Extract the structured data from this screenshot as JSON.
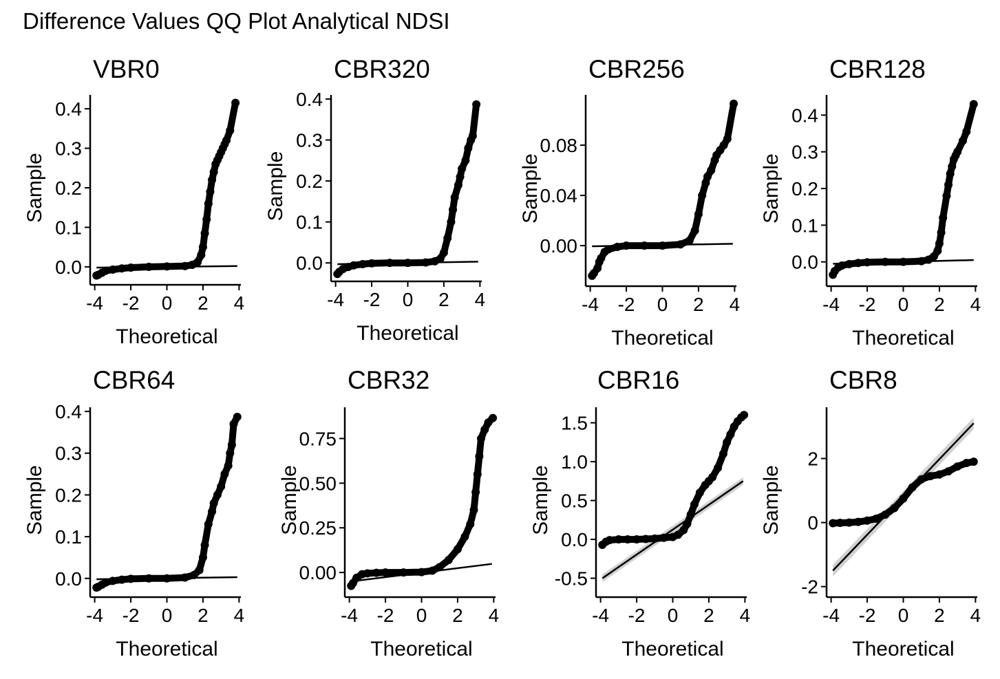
{
  "figure_title": "Difference Values QQ Plot Analytical NDSI",
  "chart_data": [
    {
      "type": "scatter",
      "title": "VBR0",
      "xlabel": "Theoretical",
      "ylabel": "Sample",
      "xlim": [
        -4.1,
        4.1
      ],
      "ylim": [
        -0.035,
        0.435
      ],
      "x_ticks": [
        "-4",
        "-2",
        "0",
        "2",
        "4"
      ],
      "x_tick_values": [
        -4,
        -2,
        0,
        2,
        4
      ],
      "y_ticks": [
        "0.0",
        "0.1",
        "0.2",
        "0.3",
        "0.4"
      ],
      "y_tick_values": [
        0.0,
        0.1,
        0.2,
        0.3,
        0.4
      ],
      "reference_line": {
        "x": [
          -3.9,
          3.9
        ],
        "y": [
          -0.002,
          0.002
        ]
      },
      "points": {
        "x": [
          -3.9,
          -3.8,
          -3.6,
          -3.4,
          -3.0,
          -2.5,
          -2.0,
          -1.0,
          0.0,
          1.0,
          1.4,
          1.7,
          1.9,
          2.0,
          2.1,
          2.2,
          2.3,
          2.4,
          2.5,
          2.6,
          2.7,
          2.8,
          2.9,
          3.0,
          3.1,
          3.2,
          3.3,
          3.5,
          3.8
        ],
        "y": [
          -0.022,
          -0.02,
          -0.015,
          -0.01,
          -0.007,
          -0.004,
          -0.002,
          0.0,
          0.001,
          0.002,
          0.005,
          0.012,
          0.03,
          0.05,
          0.085,
          0.12,
          0.16,
          0.19,
          0.22,
          0.24,
          0.26,
          0.27,
          0.28,
          0.29,
          0.3,
          0.31,
          0.32,
          0.345,
          0.415
        ]
      }
    },
    {
      "type": "scatter",
      "title": "CBR320",
      "xlabel": "Theoretical",
      "ylabel": "Sample",
      "xlim": [
        -4.1,
        4.1
      ],
      "ylim": [
        -0.035,
        0.41
      ],
      "x_ticks": [
        "-4",
        "-2",
        "0",
        "2",
        "4"
      ],
      "x_tick_values": [
        -4,
        -2,
        0,
        2,
        4
      ],
      "y_ticks": [
        "0.0",
        "0.1",
        "0.2",
        "0.3",
        "0.4"
      ],
      "y_tick_values": [
        0.0,
        0.1,
        0.2,
        0.3,
        0.4
      ],
      "reference_line": {
        "x": [
          -3.9,
          3.9
        ],
        "y": [
          -0.003,
          0.003
        ]
      },
      "points": {
        "x": [
          -3.9,
          -3.8,
          -3.6,
          -3.3,
          -3.0,
          -2.5,
          -2.0,
          -1.0,
          0.0,
          1.0,
          1.5,
          1.8,
          2.0,
          2.2,
          2.4,
          2.5,
          2.6,
          2.8,
          2.9,
          3.0,
          3.2,
          3.35,
          3.5,
          3.6,
          3.8
        ],
        "y": [
          -0.027,
          -0.022,
          -0.015,
          -0.01,
          -0.006,
          -0.003,
          -0.001,
          0.0,
          0.0,
          0.001,
          0.004,
          0.01,
          0.025,
          0.06,
          0.1,
          0.13,
          0.16,
          0.19,
          0.21,
          0.23,
          0.25,
          0.28,
          0.3,
          0.31,
          0.387
        ]
      }
    },
    {
      "type": "scatter",
      "title": "CBR256",
      "xlabel": "Theoretical",
      "ylabel": "Sample",
      "xlim": [
        -4.1,
        4.1
      ],
      "ylim": [
        -0.029,
        0.12
      ],
      "x_ticks": [
        "-4",
        "-2",
        "0",
        "2",
        "4"
      ],
      "x_tick_values": [
        -4,
        -2,
        0,
        2,
        4
      ],
      "y_ticks": [
        "0.00",
        "0.04",
        "0.08"
      ],
      "y_tick_values": [
        0.0,
        0.04,
        0.08
      ],
      "reference_line": {
        "x": [
          -3.9,
          3.9
        ],
        "y": [
          -0.0005,
          0.0015
        ]
      },
      "points": {
        "x": [
          -3.9,
          -3.8,
          -3.6,
          -3.5,
          -3.4,
          -3.2,
          -3.0,
          -2.5,
          -2.0,
          -1.0,
          0.0,
          1.0,
          1.5,
          1.8,
          2.0,
          2.2,
          2.4,
          2.5,
          2.7,
          2.9,
          3.0,
          3.2,
          3.4,
          3.6,
          3.95
        ],
        "y": [
          -0.024,
          -0.022,
          -0.018,
          -0.013,
          -0.01,
          -0.005,
          -0.003,
          -0.001,
          0.0,
          0.0,
          0.0,
          0.001,
          0.004,
          0.012,
          0.025,
          0.04,
          0.05,
          0.055,
          0.06,
          0.068,
          0.072,
          0.076,
          0.08,
          0.085,
          0.113
        ]
      }
    },
    {
      "type": "scatter",
      "title": "CBR128",
      "xlabel": "Theoretical",
      "ylabel": "Sample",
      "xlim": [
        -4.1,
        4.1
      ],
      "ylim": [
        -0.055,
        0.455
      ],
      "x_ticks": [
        "-4",
        "-2",
        "0",
        "2",
        "4"
      ],
      "x_tick_values": [
        -4,
        -2,
        0,
        2,
        4
      ],
      "y_ticks": [
        "0.0",
        "0.1",
        "0.2",
        "0.3",
        "0.4"
      ],
      "y_tick_values": [
        0.0,
        0.1,
        0.2,
        0.3,
        0.4
      ],
      "reference_line": {
        "x": [
          -3.9,
          3.9
        ],
        "y": [
          -0.005,
          0.005
        ]
      },
      "points": {
        "x": [
          -3.9,
          -3.8,
          -3.6,
          -3.4,
          -3.0,
          -2.5,
          -2.0,
          -1.0,
          0.0,
          1.0,
          1.4,
          1.7,
          1.9,
          2.0,
          2.1,
          2.2,
          2.4,
          2.5,
          2.6,
          2.7,
          2.8,
          2.9,
          3.0,
          3.3,
          3.5,
          3.9
        ],
        "y": [
          -0.035,
          -0.025,
          -0.015,
          -0.01,
          -0.006,
          -0.003,
          -0.001,
          0.0,
          0.0,
          0.002,
          0.006,
          0.015,
          0.03,
          0.05,
          0.08,
          0.12,
          0.18,
          0.21,
          0.24,
          0.26,
          0.28,
          0.29,
          0.3,
          0.33,
          0.355,
          0.43
        ]
      }
    },
    {
      "type": "scatter",
      "title": "CBR64",
      "xlabel": "Theoretical",
      "ylabel": "Sample",
      "xlim": [
        -4.1,
        4.1
      ],
      "ylim": [
        -0.035,
        0.41
      ],
      "x_ticks": [
        "-4",
        "-2",
        "0",
        "2",
        "4"
      ],
      "x_tick_values": [
        -4,
        -2,
        0,
        2,
        4
      ],
      "y_ticks": [
        "0.0",
        "0.1",
        "0.2",
        "0.3",
        "0.4"
      ],
      "y_tick_values": [
        0.0,
        0.1,
        0.2,
        0.3,
        0.4
      ],
      "reference_line": {
        "x": [
          -3.9,
          3.9
        ],
        "y": [
          -0.002,
          0.003
        ]
      },
      "points": {
        "x": [
          -3.9,
          -3.8,
          -3.6,
          -3.4,
          -3.0,
          -2.5,
          -2.0,
          -1.0,
          0.0,
          1.0,
          1.5,
          1.8,
          2.0,
          2.1,
          2.3,
          2.5,
          2.6,
          2.8,
          3.0,
          3.2,
          3.4,
          3.5,
          3.6,
          3.7,
          3.9
        ],
        "y": [
          -0.022,
          -0.02,
          -0.015,
          -0.01,
          -0.006,
          -0.003,
          -0.001,
          0.0,
          0.0,
          0.002,
          0.008,
          0.02,
          0.05,
          0.08,
          0.13,
          0.16,
          0.18,
          0.2,
          0.22,
          0.25,
          0.27,
          0.3,
          0.32,
          0.37,
          0.387
        ]
      }
    },
    {
      "type": "scatter",
      "title": "CBR32",
      "xlabel": "Theoretical",
      "ylabel": "Sample",
      "xlim": [
        -4.1,
        4.1
      ],
      "ylim": [
        -0.115,
        0.925
      ],
      "x_ticks": [
        "-4",
        "-2",
        "0",
        "2",
        "4"
      ],
      "x_tick_values": [
        -4,
        -2,
        0,
        2,
        4
      ],
      "y_ticks": [
        "0.00",
        "0.25",
        "0.50",
        "0.75"
      ],
      "y_tick_values": [
        0.0,
        0.25,
        0.5,
        0.75
      ],
      "reference_line": {
        "x": [
          -3.9,
          3.9
        ],
        "y": [
          -0.05,
          0.048
        ]
      },
      "points": {
        "x": [
          -3.9,
          -3.8,
          -3.6,
          -3.3,
          -3.0,
          -2.5,
          -2.0,
          -1.0,
          0.0,
          0.6,
          1.0,
          1.5,
          2.0,
          2.4,
          2.7,
          2.9,
          3.0,
          3.1,
          3.2,
          3.3,
          3.5,
          3.7,
          3.95
        ],
        "y": [
          -0.075,
          -0.06,
          -0.03,
          -0.01,
          -0.005,
          -0.002,
          0.0,
          0.0,
          0.002,
          0.01,
          0.03,
          0.07,
          0.13,
          0.2,
          0.27,
          0.35,
          0.45,
          0.55,
          0.65,
          0.75,
          0.8,
          0.84,
          0.865
        ]
      }
    },
    {
      "type": "scatter",
      "title": "CBR16",
      "xlabel": "Theoretical",
      "ylabel": "Sample",
      "xlim": [
        -4.1,
        4.1
      ],
      "ylim": [
        -0.69,
        1.7
      ],
      "x_ticks": [
        "-4",
        "-2",
        "0",
        "2",
        "4"
      ],
      "x_tick_values": [
        -4,
        -2,
        0,
        2,
        4
      ],
      "y_ticks": [
        "-0.5",
        "0.0",
        "0.5",
        "1.0",
        "1.5"
      ],
      "y_tick_values": [
        -0.5,
        0.0,
        0.5,
        1.0,
        1.5
      ],
      "reference_line": {
        "x": [
          -3.9,
          3.9
        ],
        "y": [
          -0.5,
          0.75
        ]
      },
      "points": {
        "x": [
          -3.9,
          -3.7,
          -3.5,
          -3.0,
          -2.5,
          -2.0,
          -1.5,
          -1.0,
          -0.5,
          0.0,
          0.3,
          0.6,
          0.8,
          1.0,
          1.2,
          1.5,
          1.8,
          2.0,
          2.2,
          2.5,
          2.8,
          3.0,
          3.2,
          3.4,
          3.6,
          3.8,
          3.95
        ],
        "y": [
          -0.07,
          -0.03,
          -0.01,
          0.0,
          0.0,
          0.0,
          0.005,
          0.01,
          0.02,
          0.03,
          0.06,
          0.12,
          0.2,
          0.32,
          0.45,
          0.6,
          0.7,
          0.75,
          0.8,
          0.92,
          1.1,
          1.25,
          1.35,
          1.45,
          1.52,
          1.57,
          1.6
        ]
      }
    },
    {
      "type": "scatter",
      "title": "CBR8",
      "xlabel": "Theoretical",
      "ylabel": "Sample",
      "xlim": [
        -4.1,
        4.1
      ],
      "ylim": [
        -2.2,
        3.6
      ],
      "x_ticks": [
        "-4",
        "-2",
        "0",
        "2",
        "4"
      ],
      "x_tick_values": [
        -4,
        -2,
        0,
        2,
        4
      ],
      "y_ticks": [
        "-2",
        "0",
        "2"
      ],
      "y_tick_values": [
        -2,
        0,
        2
      ],
      "reference_line": {
        "x": [
          -3.9,
          3.9
        ],
        "y": [
          -1.5,
          3.1
        ]
      },
      "points": {
        "x": [
          -3.9,
          -3.5,
          -3.0,
          -2.5,
          -2.0,
          -1.5,
          -1.0,
          -0.5,
          0.0,
          0.5,
          1.0,
          1.5,
          2.0,
          2.5,
          3.0,
          3.5,
          3.9
        ],
        "y": [
          -0.02,
          -0.01,
          0.0,
          0.02,
          0.06,
          0.12,
          0.25,
          0.45,
          0.75,
          1.1,
          1.35,
          1.45,
          1.5,
          1.6,
          1.75,
          1.86,
          1.9
        ]
      }
    }
  ]
}
